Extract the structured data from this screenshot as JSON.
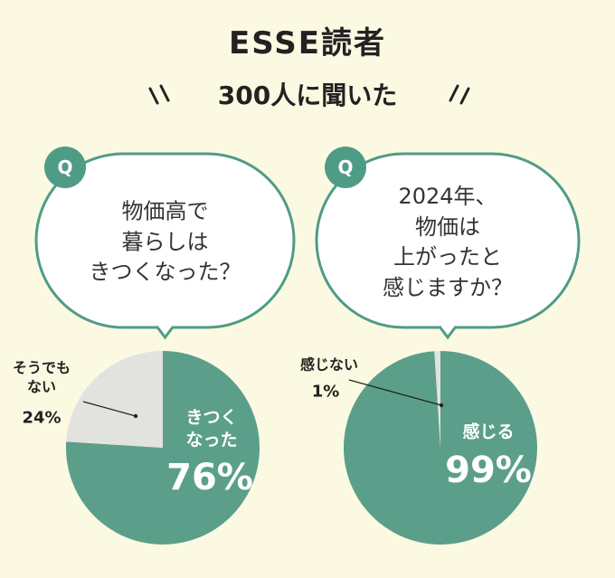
{
  "header": {
    "title": "ESSE読者",
    "subtitle": "300人に聞いた"
  },
  "chart_data": [
    {
      "type": "pie",
      "badge": "Q",
      "title": "物価高で\n暮らしは\nきつくなった？",
      "categories": [
        "きつく\nなった",
        "そうでも\nない"
      ],
      "values": [
        76,
        24
      ],
      "value_labels": [
        "76%",
        "24%"
      ],
      "colors": [
        "#5b9f8a",
        "#e2e2de"
      ]
    },
    {
      "type": "pie",
      "badge": "Q",
      "title": "2024年、\n物価は\n上がったと\n感じますか？",
      "categories": [
        "感じる",
        "感じない"
      ],
      "values": [
        99,
        1
      ],
      "value_labels": [
        "99%",
        "1%"
      ],
      "colors": [
        "#5b9f8a",
        "#e2e2de"
      ]
    }
  ]
}
